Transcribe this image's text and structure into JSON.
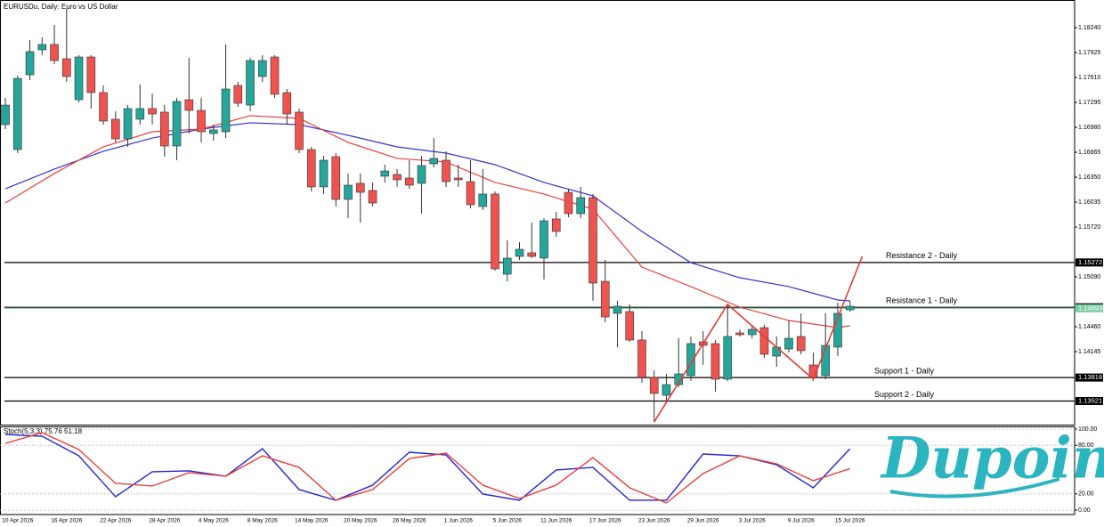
{
  "chart_data": [
    {
      "type": "candlestick",
      "title": "EURUSDu, Daily: Euro vs US Dollar",
      "categories": [
        null,
        "10 Apr 2026",
        null,
        null,
        null,
        "16 Apr 2026",
        null,
        null,
        null,
        "22 Apr 2026",
        null,
        null,
        null,
        "28 Apr 2026",
        null,
        null,
        null,
        "4 May 2026",
        null,
        null,
        null,
        "8 May 2026",
        null,
        null,
        null,
        "14 May 2026",
        null,
        null,
        null,
        "20 May 2026",
        null,
        null,
        null,
        "26 May 2026",
        null,
        null,
        null,
        "1 Jun 2026",
        null,
        null,
        null,
        "5 Jun 2026",
        null,
        null,
        null,
        "11 Jun 2026",
        null,
        null,
        null,
        "17 Jun 2026",
        null,
        null,
        null,
        "23 Jun 2026",
        null,
        null,
        null,
        "29 Jun 2026",
        null,
        null,
        null,
        "3 Jul 2026",
        null,
        null,
        null,
        "9 Jul 2026",
        null,
        null,
        null,
        "15 Jul 2026"
      ],
      "open": [
        1.17014,
        1.16699,
        1.17644,
        1.17959,
        1.18027,
        1.17847,
        1.17329,
        1.17869,
        1.17419,
        1.17082,
        1.16834,
        1.17082,
        1.17217,
        1.17172,
        1.16744,
        1.17329,
        1.17194,
        1.16902,
        1.16924,
        1.17509,
        1.17261,
        1.17622,
        1.17869,
        1.17419,
        1.17172,
        1.16699,
        1.16227,
        1.16609,
        1.16069,
        1.16272,
        1.16182,
        1.16362,
        1.16384,
        1.16339,
        1.16272,
        1.16519,
        1.16564,
        1.16339,
        1.16294,
        1.15979,
        1.16137,
        1.15124,
        1.15349,
        1.15394,
        1.15327,
        1.15822,
        1.16159,
        1.15889,
        1.16092,
        1.15034,
        1.14629,
        1.14652,
        1.14292,
        1.13819,
        1.13594,
        1.13729,
        1.13842,
        1.14269,
        1.14247,
        1.13797,
        1.14382,
        1.14359,
        1.14449,
        1.14089,
        1.14179,
        1.14337,
        1.13977,
        1.13842,
        1.14202,
        1.14674
      ],
      "high": [
        1.17352,
        1.17633,
        1.18083,
        1.18117,
        1.18274,
        1.18477,
        1.17892,
        1.17892,
        1.17509,
        1.17183,
        1.17262,
        1.1752,
        1.17408,
        1.17262,
        1.17352,
        1.17858,
        1.17352,
        1.17014,
        1.18027,
        1.17554,
        1.17858,
        1.17892,
        1.17892,
        1.17464,
        1.17217,
        1.16733,
        1.1662,
        1.16654,
        1.16396,
        1.16396,
        1.16283,
        1.16508,
        1.16452,
        1.16564,
        1.1662,
        1.16845,
        1.16677,
        1.16508,
        1.16564,
        1.16452,
        1.1617,
        1.15551,
        1.15529,
        1.15776,
        1.15833,
        1.15911,
        1.16204,
        1.16227,
        1.16137,
        1.15304,
        1.14787,
        1.14742,
        1.14404,
        1.13909,
        1.13864,
        1.14314,
        1.14337,
        1.14404,
        1.14292,
        1.14742,
        1.14427,
        1.14483,
        1.14483,
        1.14337,
        1.14539,
        1.14629,
        1.14134,
        1.14629,
        1.14764,
        1.14787
      ],
      "low": [
        1.16958,
        1.16654,
        1.17577,
        1.17892,
        1.17779,
        1.17554,
        1.17295,
        1.17217,
        1.17014,
        1.16789,
        1.16733,
        1.17014,
        1.17014,
        1.16609,
        1.16564,
        1.16902,
        1.16789,
        1.16811,
        1.16845,
        1.17239,
        1.17183,
        1.17554,
        1.17352,
        1.17014,
        1.16654,
        1.1617,
        1.16137,
        1.15979,
        1.15833,
        1.15776,
        1.15979,
        1.16283,
        1.16227,
        1.16204,
        1.15889,
        1.16474,
        1.16227,
        1.16227,
        1.15957,
        1.15934,
        1.15169,
        1.15034,
        1.15304,
        1.15327,
        1.15057,
        1.15597,
        1.15844,
        1.15833,
        1.14787,
        1.14517,
        1.14202,
        1.14269,
        1.13752,
        1.13257,
        1.13504,
        1.13696,
        1.13777,
        1.13977,
        1.13639,
        1.13774,
        1.14337,
        1.14314,
        1.14067,
        1.13954,
        1.14134,
        1.14112,
        1.13774,
        1.13797,
        1.14089,
        1.14652
      ],
      "close": [
        1.17261,
        1.17599,
        1.17937,
        1.18027,
        1.17824,
        1.17622,
        1.17869,
        1.17419,
        1.17059,
        1.16834,
        1.17217,
        1.17217,
        1.17149,
        1.16744,
        1.17307,
        1.17194,
        1.16924,
        1.16947,
        1.17464,
        1.17284,
        1.17824,
        1.17824,
        1.17397,
        1.17149,
        1.16699,
        1.16227,
        1.16564,
        1.16069,
        1.16249,
        1.16159,
        1.16024,
        1.16429,
        1.16317,
        1.16249,
        1.16497,
        1.16587,
        1.16294,
        1.16317,
        1.16002,
        1.16137,
        1.15192,
        1.15327,
        1.15439,
        1.15349,
        1.15799,
        1.15664,
        1.15889,
        1.16092,
        1.15012,
        1.14584,
        1.14719,
        1.14292,
        1.13819,
        1.13617,
        1.13729,
        1.13864,
        1.14247,
        1.14224,
        1.13797,
        1.14337,
        1.14359,
        1.14427,
        1.14112,
        1.14202,
        1.14314,
        1.14157,
        1.13819,
        1.14224,
        1.14629,
        1.14719
      ],
      "up_color": "#26a69a",
      "down_color": "#ef5350",
      "xlim": [
        -0.44,
        87.35
      ],
      "ylim": [
        1.13223,
        1.18589
      ],
      "yticks": [
        {
          "value": 1.1824,
          "label": "1.18240"
        },
        {
          "value": 1.17925,
          "label": "1.17925"
        },
        {
          "value": 1.1761,
          "label": "1.17610"
        },
        {
          "value": 1.17295,
          "label": "1.17295"
        },
        {
          "value": 1.1698,
          "label": "1.16980"
        },
        {
          "value": 1.16665,
          "label": "1.16665"
        },
        {
          "value": 1.1635,
          "label": "1.16350"
        },
        {
          "value": 1.16035,
          "label": "1.16035"
        },
        {
          "value": 1.1572,
          "label": "1.15720"
        },
        {
          "value": 1.1509,
          "label": "1.15090"
        },
        {
          "value": 1.1446,
          "label": "1.14460"
        },
        {
          "value": 1.14145,
          "label": "1.14145"
        }
      ],
      "overlays": [
        {
          "type": "line",
          "color": "#3333cc",
          "x": [
            0,
            4,
            8,
            12,
            16,
            20,
            24,
            28,
            32,
            36,
            40,
            44,
            48,
            52,
            56,
            60,
            64,
            68,
            69
          ],
          "values": [
            1.16204,
            1.16452,
            1.16677,
            1.16845,
            1.16958,
            1.17037,
            1.17014,
            1.16879,
            1.16733,
            1.16654,
            1.16508,
            1.16283,
            1.16114,
            1.15664,
            1.1527,
            1.15079,
            1.14967,
            1.14798,
            1.14787
          ]
        },
        {
          "type": "line",
          "color": "#e8403c",
          "x": [
            0,
            4,
            8,
            12,
            16,
            20,
            24,
            28,
            32,
            36,
            40,
            44,
            48,
            52,
            56,
            60,
            64,
            68,
            69
          ],
          "values": [
            1.16024,
            1.16396,
            1.16733,
            1.16924,
            1.16958,
            1.17127,
            1.17093,
            1.16789,
            1.16587,
            1.16542,
            1.16283,
            1.16137,
            1.15945,
            1.15214,
            1.14967,
            1.14708,
            1.14539,
            1.14449,
            1.14472
          ]
        }
      ],
      "levels": [
        {
          "name": "Resistance 2 - Daily",
          "value": 1.15272,
          "label": "1.15272",
          "color": "#000000"
        },
        {
          "name": "Resistance 1 - Daily",
          "value": 1.14706,
          "label": "1.14706",
          "color": "#000000"
        },
        {
          "name": "Support 1 - Daily",
          "value": 1.13818,
          "label": "1.13818",
          "color": "#000000"
        },
        {
          "name": "Support 2 - Daily",
          "value": 1.13521,
          "label": "1.13521",
          "color": "#000000"
        }
      ],
      "price_line": {
        "value": 1.14693,
        "label": "1.14693",
        "color": "#7ccfa3"
      },
      "trendline": {
        "color": "#e53935",
        "x": [
          53,
          59,
          66,
          70
        ],
        "values": [
          1.13257,
          1.14742,
          1.13797,
          1.15349
        ]
      },
      "logo": "Dupoin"
    },
    {
      "type": "line",
      "title": "Stoch(5,3,3) 75.76 51.18",
      "xlim": [
        -0.44,
        87.35
      ],
      "ylim": [
        -5.5,
        103.3
      ],
      "yticks": [
        {
          "value": 100,
          "label": "100.00"
        },
        {
          "value": 80,
          "label": "80.00"
        },
        {
          "value": 20,
          "label": "20.00"
        },
        {
          "value": 0,
          "label": "0.00"
        }
      ],
      "grid": true,
      "x": [
        0,
        3,
        6,
        9,
        12,
        15,
        18,
        21,
        24,
        27,
        30,
        33,
        36,
        39,
        42,
        45,
        48,
        51,
        54,
        57,
        60,
        63,
        66,
        69
      ],
      "series": [
        {
          "color": "#2323d0",
          "values": [
            93.4,
            91.2,
            67.0,
            16.5,
            47.3,
            48.4,
            41.8,
            75.8,
            25.3,
            12.1,
            30.8,
            71.4,
            68.1,
            19.8,
            12.1,
            49.5,
            52.7,
            12.1,
            12.1,
            69.2,
            67.0,
            56.0,
            27.5,
            75.76
          ]
        },
        {
          "color": "#e8403c",
          "values": [
            82.4,
            95.6,
            74.7,
            33.0,
            29.7,
            46.2,
            41.8,
            67.0,
            52.7,
            12.1,
            25.3,
            63.7,
            70.3,
            30.8,
            14.3,
            30.8,
            64.8,
            27.5,
            8.8,
            45.1,
            67.0,
            57.1,
            36.3,
            51.18
          ]
        }
      ]
    }
  ]
}
